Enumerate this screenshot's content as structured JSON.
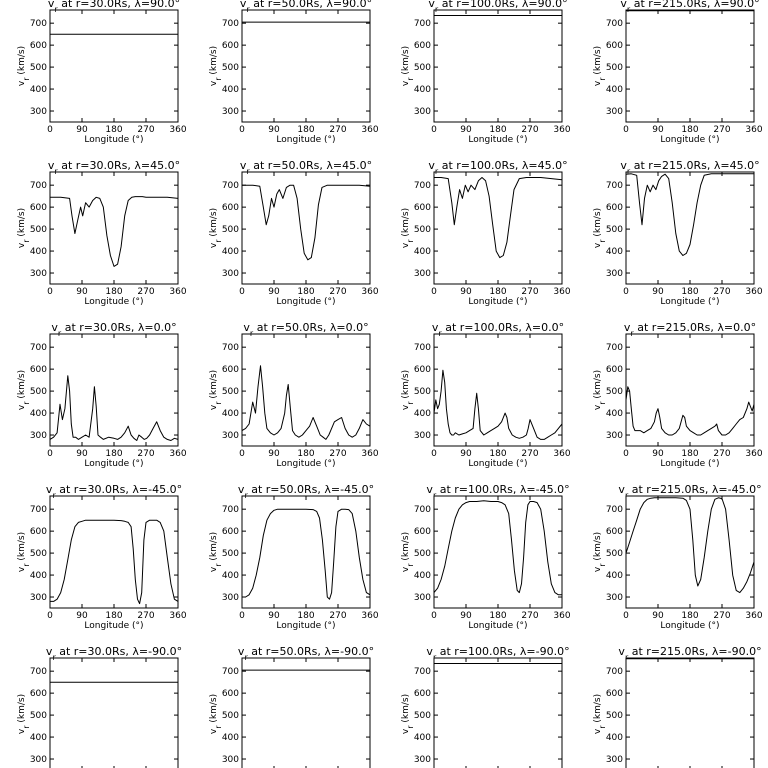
{
  "chart_data": {
    "type": "line",
    "layout": "5x4 grid of panels",
    "xlabel": "Longitude (°)",
    "ylabel": "v_r (km/s)",
    "xlim": [
      0,
      360
    ],
    "ylim": [
      250,
      760
    ],
    "xticks": [
      0,
      90,
      180,
      270,
      360
    ],
    "yticks": [
      300,
      400,
      500,
      600,
      700
    ],
    "grid": false,
    "line_color": "#000000",
    "panels": [
      {
        "title": "v_r at r=30.0Rs, λ=90.0°",
        "x": [
          0,
          360
        ],
        "y": [
          650,
          650
        ]
      },
      {
        "title": "v_r at r=50.0Rs, λ=90.0°",
        "x": [
          0,
          360
        ],
        "y": [
          705,
          705
        ]
      },
      {
        "title": "v_r at r=100.0Rs, λ=90.0°",
        "x": [
          0,
          360
        ],
        "y": [
          735,
          735
        ]
      },
      {
        "title": "v_r at r=215.0Rs, λ=90.0°",
        "x": [
          0,
          360
        ],
        "y": [
          757,
          757
        ]
      },
      {
        "title": "v_r at r=30.0Rs, λ=45.0°",
        "x": [
          0,
          30,
          55,
          62,
          70,
          78,
          86,
          92,
          100,
          110,
          120,
          130,
          140,
          150,
          160,
          170,
          180,
          190,
          200,
          210,
          220,
          230,
          240,
          250,
          260,
          270,
          300,
          330,
          360
        ],
        "y": [
          645,
          645,
          640,
          560,
          480,
          540,
          600,
          560,
          620,
          600,
          630,
          645,
          640,
          600,
          470,
          380,
          330,
          340,
          420,
          560,
          630,
          645,
          648,
          648,
          648,
          645,
          645,
          645,
          640
        ]
      },
      {
        "title": "v_r at r=50.0Rs, λ=45.0°",
        "x": [
          0,
          30,
          50,
          60,
          68,
          75,
          83,
          90,
          98,
          105,
          115,
          125,
          135,
          145,
          155,
          165,
          175,
          185,
          195,
          205,
          215,
          225,
          240,
          260,
          290,
          330,
          360
        ],
        "y": [
          700,
          700,
          695,
          600,
          520,
          560,
          640,
          600,
          660,
          680,
          640,
          690,
          700,
          700,
          640,
          500,
          390,
          360,
          370,
          460,
          610,
          690,
          700,
          700,
          700,
          700,
          695
        ]
      },
      {
        "title": "v_r at r=100.0Rs, λ=45.0°",
        "x": [
          0,
          20,
          40,
          50,
          57,
          64,
          72,
          80,
          88,
          96,
          104,
          115,
          125,
          135,
          145,
          155,
          165,
          175,
          185,
          195,
          205,
          215,
          225,
          240,
          260,
          300,
          360
        ],
        "y": [
          735,
          735,
          730,
          620,
          520,
          600,
          680,
          640,
          700,
          670,
          700,
          680,
          720,
          735,
          720,
          650,
          520,
          400,
          370,
          380,
          440,
          560,
          680,
          730,
          735,
          735,
          725
        ]
      },
      {
        "title": "v_r at r=215.0Rs, λ=45.0°",
        "x": [
          0,
          15,
          30,
          38,
          45,
          52,
          60,
          68,
          76,
          84,
          92,
          100,
          110,
          120,
          130,
          140,
          150,
          160,
          170,
          180,
          190,
          200,
          210,
          220,
          240,
          260,
          300,
          360
        ],
        "y": [
          750,
          752,
          745,
          620,
          520,
          640,
          700,
          670,
          700,
          680,
          720,
          740,
          750,
          730,
          620,
          480,
          400,
          380,
          390,
          430,
          520,
          620,
          700,
          745,
          752,
          752,
          752,
          752
        ]
      },
      {
        "title": "v_r at r=30.0Rs, λ=0.0°",
        "x": [
          0,
          10,
          20,
          28,
          35,
          42,
          50,
          55,
          60,
          65,
          72,
          80,
          90,
          100,
          110,
          120,
          125,
          130,
          135,
          142,
          150,
          165,
          180,
          190,
          200,
          210,
          220,
          228,
          236,
          244,
          250,
          258,
          265,
          272,
          280,
          290,
          300,
          310,
          320,
          330,
          340,
          350,
          360
        ],
        "y": [
          280,
          290,
          310,
          440,
          370,
          420,
          570,
          500,
          350,
          290,
          290,
          280,
          290,
          300,
          290,
          420,
          520,
          430,
          300,
          290,
          280,
          290,
          285,
          280,
          290,
          310,
          340,
          300,
          285,
          275,
          300,
          290,
          280,
          285,
          300,
          330,
          360,
          320,
          290,
          280,
          275,
          285,
          280
        ]
      },
      {
        "title": "v_r at r=50.0Rs, λ=0.0°",
        "x": [
          0,
          10,
          20,
          30,
          38,
          45,
          52,
          58,
          64,
          70,
          80,
          90,
          100,
          110,
          120,
          125,
          130,
          136,
          142,
          150,
          160,
          170,
          180,
          190,
          200,
          210,
          220,
          228,
          236,
          244,
          252,
          260,
          270,
          280,
          290,
          300,
          310,
          320,
          330,
          340,
          350,
          360
        ],
        "y": [
          320,
          330,
          350,
          450,
          400,
          520,
          615,
          520,
          400,
          330,
          310,
          300,
          310,
          330,
          400,
          480,
          530,
          420,
          320,
          300,
          290,
          300,
          320,
          340,
          380,
          340,
          300,
          290,
          280,
          300,
          330,
          360,
          370,
          380,
          330,
          300,
          290,
          300,
          330,
          370,
          350,
          340
        ]
      },
      {
        "title": "v_r at r=100.0Rs, λ=0.0°",
        "x": [
          0,
          5,
          10,
          15,
          20,
          25,
          30,
          35,
          40,
          45,
          50,
          55,
          60,
          70,
          80,
          90,
          100,
          110,
          115,
          120,
          125,
          130,
          140,
          150,
          160,
          170,
          180,
          190,
          200,
          205,
          210,
          220,
          230,
          240,
          250,
          260,
          265,
          270,
          280,
          290,
          300,
          310,
          320,
          330,
          340,
          350,
          360
        ],
        "y": [
          400,
          460,
          420,
          440,
          500,
          595,
          540,
          420,
          350,
          310,
          300,
          300,
          310,
          300,
          305,
          310,
          320,
          330,
          420,
          490,
          420,
          320,
          300,
          310,
          320,
          330,
          340,
          360,
          400,
          380,
          330,
          300,
          290,
          285,
          290,
          300,
          330,
          370,
          330,
          290,
          280,
          280,
          290,
          300,
          310,
          330,
          350
        ]
      },
      {
        "title": "v_r at r=215.0Rs, λ=0.0°",
        "x": [
          0,
          5,
          10,
          15,
          20,
          25,
          30,
          40,
          50,
          60,
          70,
          80,
          85,
          90,
          95,
          100,
          110,
          120,
          130,
          140,
          150,
          155,
          160,
          165,
          170,
          180,
          190,
          200,
          210,
          220,
          230,
          240,
          250,
          255,
          260,
          270,
          280,
          290,
          300,
          310,
          320,
          330,
          340,
          345,
          350,
          355,
          360
        ],
        "y": [
          460,
          520,
          500,
          420,
          340,
          320,
          320,
          320,
          310,
          320,
          330,
          360,
          400,
          420,
          380,
          330,
          310,
          300,
          300,
          310,
          330,
          360,
          390,
          380,
          340,
          320,
          310,
          300,
          300,
          310,
          320,
          330,
          340,
          350,
          320,
          300,
          300,
          310,
          330,
          350,
          370,
          380,
          420,
          450,
          430,
          410,
          440
        ]
      },
      {
        "title": "v_r at r=30.0Rs, λ=-45.0°",
        "x": [
          0,
          10,
          20,
          30,
          40,
          50,
          60,
          70,
          80,
          90,
          100,
          120,
          140,
          160,
          180,
          200,
          210,
          220,
          228,
          234,
          240,
          246,
          252,
          258,
          264,
          270,
          280,
          290,
          300,
          310,
          320,
          330,
          340,
          350,
          360
        ],
        "y": [
          280,
          280,
          290,
          320,
          380,
          470,
          560,
          620,
          640,
          645,
          650,
          650,
          650,
          650,
          650,
          648,
          645,
          640,
          620,
          520,
          380,
          290,
          270,
          320,
          560,
          640,
          650,
          650,
          650,
          640,
          600,
          480,
          360,
          290,
          280
        ]
      },
      {
        "title": "v_r at r=50.0Rs, λ=-45.0°",
        "x": [
          0,
          10,
          20,
          30,
          40,
          50,
          60,
          70,
          80,
          90,
          100,
          120,
          140,
          160,
          180,
          200,
          210,
          218,
          226,
          234,
          240,
          246,
          252,
          258,
          264,
          270,
          280,
          290,
          300,
          310,
          320,
          330,
          340,
          350,
          360
        ],
        "y": [
          300,
          300,
          310,
          340,
          400,
          480,
          580,
          650,
          680,
          695,
          700,
          700,
          700,
          700,
          700,
          698,
          690,
          660,
          560,
          420,
          300,
          290,
          320,
          460,
          620,
          690,
          700,
          700,
          698,
          680,
          600,
          480,
          380,
          320,
          310
        ]
      },
      {
        "title": "v_r at r=100.0Rs, λ=-45.0°",
        "x": [
          0,
          10,
          20,
          30,
          40,
          50,
          60,
          70,
          80,
          90,
          100,
          120,
          140,
          160,
          180,
          190,
          200,
          210,
          218,
          226,
          234,
          240,
          246,
          252,
          258,
          264,
          270,
          280,
          290,
          300,
          310,
          320,
          330,
          340,
          350,
          360
        ],
        "y": [
          320,
          340,
          380,
          440,
          520,
          600,
          660,
          700,
          720,
          730,
          735,
          735,
          738,
          735,
          735,
          730,
          720,
          680,
          560,
          420,
          330,
          320,
          360,
          480,
          640,
          720,
          735,
          735,
          730,
          700,
          600,
          460,
          360,
          320,
          310,
          310
        ]
      },
      {
        "title": "v_r at r=215.0Rs, λ=-45.0°",
        "x": [
          0,
          10,
          20,
          30,
          40,
          50,
          60,
          70,
          80,
          90,
          100,
          120,
          140,
          160,
          170,
          180,
          188,
          195,
          202,
          210,
          220,
          230,
          240,
          250,
          260,
          270,
          280,
          290,
          300,
          310,
          320,
          330,
          340,
          350,
          360
        ],
        "y": [
          500,
          550,
          600,
          650,
          700,
          730,
          745,
          750,
          752,
          752,
          752,
          752,
          752,
          750,
          740,
          700,
          560,
          400,
          350,
          380,
          480,
          600,
          700,
          745,
          752,
          748,
          700,
          560,
          400,
          330,
          320,
          340,
          370,
          410,
          460
        ]
      },
      {
        "title": "v_r at r=30.0Rs, λ=-90.0°",
        "x": [
          0,
          360
        ],
        "y": [
          650,
          650
        ]
      },
      {
        "title": "v_r at r=50.0Rs, λ=-90.0°",
        "x": [
          0,
          360
        ],
        "y": [
          705,
          705
        ]
      },
      {
        "title": "v_r at r=100.0Rs, λ=-90.0°",
        "x": [
          0,
          360
        ],
        "y": [
          735,
          735
        ]
      },
      {
        "title": "v_r at r=215.0Rs, λ=-90.0°",
        "x": [
          0,
          360
        ],
        "y": [
          757,
          757
        ]
      }
    ]
  }
}
